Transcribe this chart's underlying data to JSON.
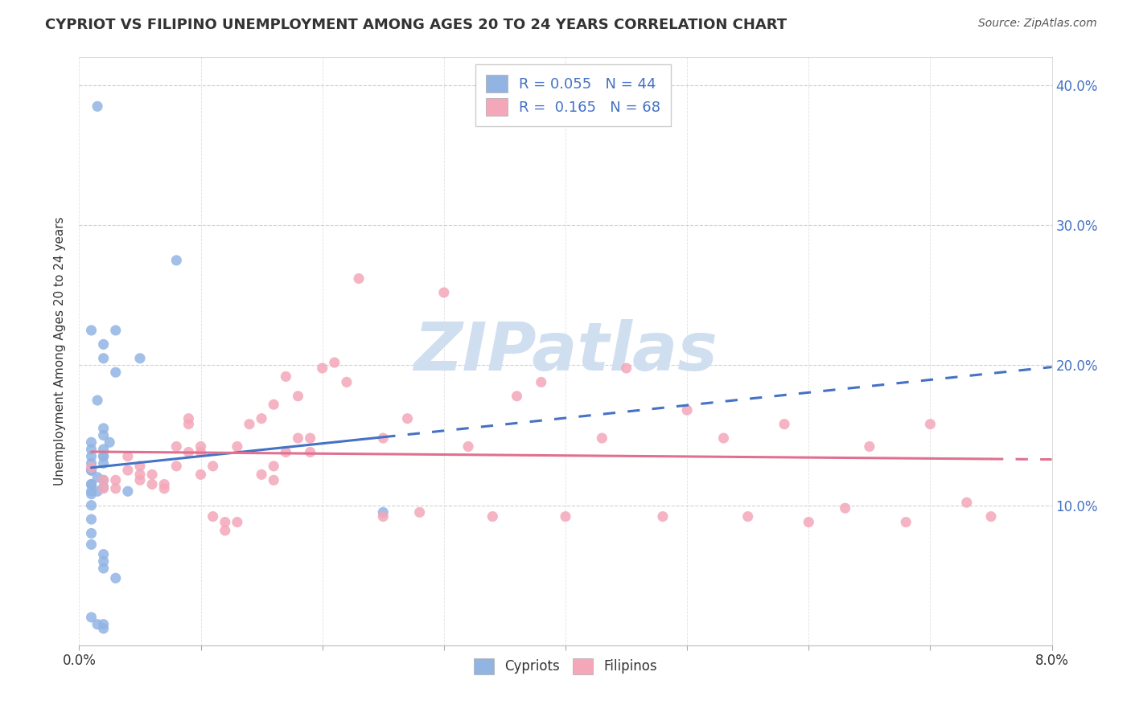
{
  "title": "CYPRIOT VS FILIPINO UNEMPLOYMENT AMONG AGES 20 TO 24 YEARS CORRELATION CHART",
  "source": "Source: ZipAtlas.com",
  "ylabel_label": "Unemployment Among Ages 20 to 24 years",
  "xlim": [
    0.0,
    0.08
  ],
  "ylim": [
    0.0,
    0.42
  ],
  "x_ticks": [
    0.0,
    0.01,
    0.02,
    0.03,
    0.04,
    0.05,
    0.06,
    0.07,
    0.08
  ],
  "x_tick_labels": [
    "0.0%",
    "",
    "",
    "",
    "",
    "",
    "",
    "",
    "8.0%"
  ],
  "y_ticks": [
    0.0,
    0.1,
    0.2,
    0.3,
    0.4
  ],
  "y_tick_labels": [
    "",
    "10.0%",
    "20.0%",
    "30.0%",
    "40.0%"
  ],
  "cypriot_color": "#92b4e3",
  "filipino_color": "#f4a7b9",
  "cypriot_line_color": "#4472c4",
  "filipino_line_color": "#e07090",
  "cypriot_R": 0.055,
  "cypriot_N": 44,
  "filipino_R": 0.165,
  "filipino_N": 68,
  "legend_color": "#4472c4",
  "watermark": "ZIPatlas",
  "watermark_color": "#d0dff0",
  "cypriot_x": [
    0.0015,
    0.008,
    0.003,
    0.005,
    0.003,
    0.001,
    0.002,
    0.002,
    0.0015,
    0.001,
    0.002,
    0.002,
    0.0025,
    0.002,
    0.002,
    0.001,
    0.002,
    0.002,
    0.001,
    0.001,
    0.001,
    0.0015,
    0.002,
    0.001,
    0.001,
    0.001,
    0.002,
    0.0015,
    0.001,
    0.001,
    0.001,
    0.001,
    0.001,
    0.001,
    0.002,
    0.002,
    0.002,
    0.003,
    0.004,
    0.025,
    0.001,
    0.002,
    0.0015,
    0.002
  ],
  "cypriot_y": [
    0.385,
    0.275,
    0.225,
    0.205,
    0.195,
    0.225,
    0.215,
    0.205,
    0.175,
    0.145,
    0.15,
    0.155,
    0.145,
    0.14,
    0.135,
    0.14,
    0.135,
    0.13,
    0.135,
    0.13,
    0.125,
    0.12,
    0.118,
    0.125,
    0.115,
    0.115,
    0.113,
    0.11,
    0.108,
    0.11,
    0.1,
    0.09,
    0.08,
    0.072,
    0.065,
    0.06,
    0.055,
    0.048,
    0.11,
    0.095,
    0.02,
    0.015,
    0.015,
    0.012
  ],
  "filipino_x": [
    0.001,
    0.002,
    0.002,
    0.003,
    0.003,
    0.004,
    0.004,
    0.005,
    0.005,
    0.005,
    0.006,
    0.006,
    0.007,
    0.007,
    0.008,
    0.008,
    0.009,
    0.009,
    0.009,
    0.01,
    0.01,
    0.01,
    0.011,
    0.011,
    0.012,
    0.012,
    0.013,
    0.013,
    0.014,
    0.015,
    0.015,
    0.016,
    0.016,
    0.016,
    0.017,
    0.017,
    0.018,
    0.018,
    0.019,
    0.019,
    0.02,
    0.021,
    0.022,
    0.023,
    0.025,
    0.025,
    0.027,
    0.028,
    0.03,
    0.032,
    0.034,
    0.036,
    0.038,
    0.04,
    0.043,
    0.045,
    0.048,
    0.05,
    0.053,
    0.055,
    0.058,
    0.06,
    0.063,
    0.065,
    0.068,
    0.07,
    0.073,
    0.075
  ],
  "filipino_y": [
    0.127,
    0.118,
    0.112,
    0.118,
    0.112,
    0.135,
    0.125,
    0.118,
    0.122,
    0.128,
    0.122,
    0.115,
    0.112,
    0.115,
    0.142,
    0.128,
    0.162,
    0.158,
    0.138,
    0.142,
    0.138,
    0.122,
    0.128,
    0.092,
    0.088,
    0.082,
    0.088,
    0.142,
    0.158,
    0.122,
    0.162,
    0.128,
    0.118,
    0.172,
    0.138,
    0.192,
    0.178,
    0.148,
    0.138,
    0.148,
    0.198,
    0.202,
    0.188,
    0.262,
    0.148,
    0.092,
    0.162,
    0.095,
    0.252,
    0.142,
    0.092,
    0.178,
    0.188,
    0.092,
    0.148,
    0.198,
    0.092,
    0.168,
    0.148,
    0.092,
    0.158,
    0.088,
    0.098,
    0.142,
    0.088,
    0.158,
    0.102,
    0.092
  ]
}
